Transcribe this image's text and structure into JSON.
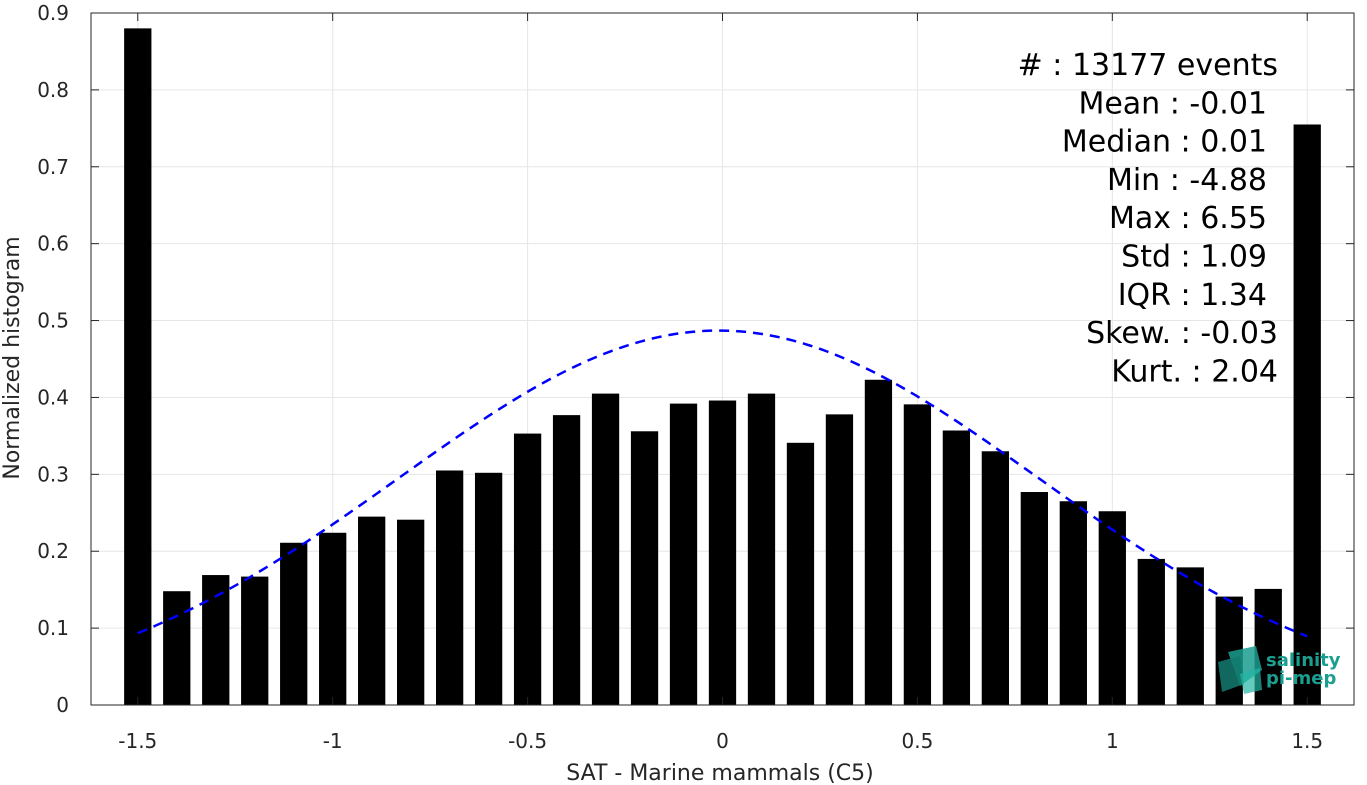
{
  "chart_data": {
    "type": "bar",
    "xlabel": "SAT - Marine mammals (C5)",
    "ylabel": "Normalized histogram",
    "xlim": [
      -1.62,
      1.62
    ],
    "ylim": [
      0,
      0.9
    ],
    "xticks": [
      -1.5,
      -1,
      -0.5,
      0,
      0.5,
      1,
      1.5
    ],
    "xtick_labels": [
      "-1.5",
      "-1",
      "-0.5",
      "0",
      "0.5",
      "1",
      "1.5"
    ],
    "yticks": [
      0,
      0.1,
      0.2,
      0.3,
      0.4,
      0.5,
      0.6,
      0.7,
      0.8,
      0.9
    ],
    "ytick_labels": [
      "0",
      "0.1",
      "0.2",
      "0.3",
      "0.4",
      "0.5",
      "0.6",
      "0.7",
      "0.8",
      "0.9"
    ],
    "grid": true,
    "bar_width": 0.07,
    "bar_color": "#000000",
    "x": [
      -1.5,
      -1.4,
      -1.3,
      -1.2,
      -1.1,
      -1.0,
      -0.9,
      -0.8,
      -0.7,
      -0.6,
      -0.5,
      -0.4,
      -0.3,
      -0.2,
      -0.1,
      0.0,
      0.1,
      0.2,
      0.3,
      0.4,
      0.5,
      0.6,
      0.7,
      0.8,
      0.9,
      1.0,
      1.1,
      1.2,
      1.3,
      1.4,
      1.5
    ],
    "values": [
      0.88,
      0.148,
      0.169,
      0.167,
      0.211,
      0.224,
      0.245,
      0.241,
      0.305,
      0.302,
      0.353,
      0.377,
      0.405,
      0.356,
      0.392,
      0.396,
      0.405,
      0.341,
      0.378,
      0.423,
      0.391,
      0.357,
      0.33,
      0.277,
      0.265,
      0.252,
      0.19,
      0.179,
      0.141,
      0.151,
      0.755
    ],
    "fit_curve": {
      "type": "gaussian",
      "mean": -0.01,
      "std": 0.82,
      "peak": 0.487,
      "x_range": [
        -1.5,
        1.5
      ],
      "color": "#0000ff",
      "style": "dashed"
    },
    "stats": [
      "#  : 13177 events",
      "Mean : -0.01",
      "Median : 0.01",
      "Min : -4.88",
      "Max : 6.55",
      "Std : 1.09",
      "IQR : 1.34",
      "Skew. : -0.03",
      "Kurt. : 2.04"
    ]
  },
  "logo": {
    "line1": "salinity",
    "line2": "pi-mep",
    "color": "#1a9e8f"
  }
}
